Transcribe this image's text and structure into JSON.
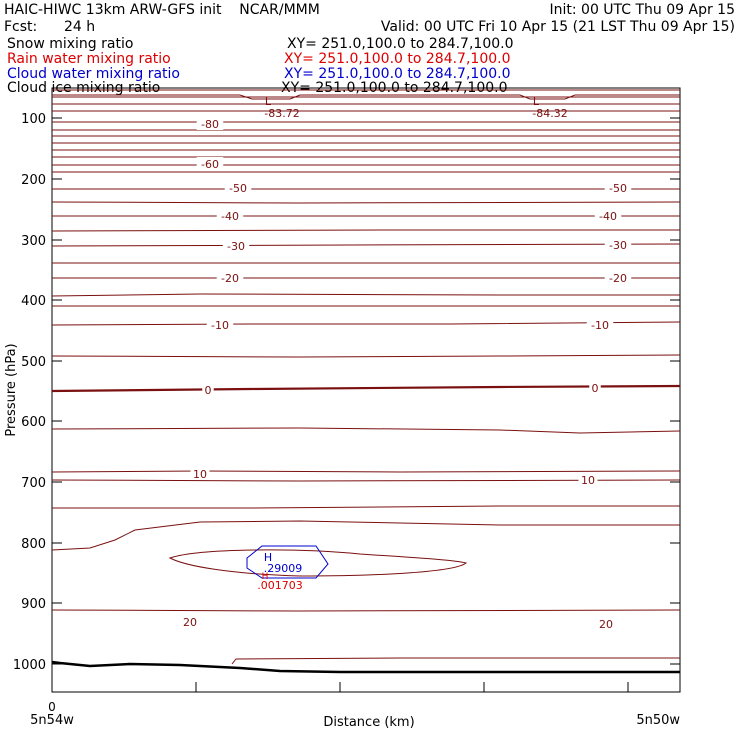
{
  "header": {
    "title": "HAIC-HIWC 13km ARW-GFS init    NCAR/MMM",
    "init": "Init: 00 UTC Thu 09 Apr 15",
    "fcst_label": "Fcst:",
    "fcst_value": "24 h",
    "valid": "Valid: 00 UTC Fri 10 Apr 15 (21 LST Thu 09 Apr 15)"
  },
  "legend": [
    {
      "name": "Snow mixing ratio",
      "xy": "XY= 251.0,100.0 to 284.7,100.0",
      "color": "#000000"
    },
    {
      "name": "Rain water mixing ratio",
      "xy": "XY= 251.0,100.0 to 284.7,100.0",
      "color": "#dd0000"
    },
    {
      "name": "Cloud water mixing ratio",
      "xy": "XY= 251.0,100.0 to 284.7,100.0",
      "color": "#0000cc"
    },
    {
      "name": "Cloud ice mixing ratio",
      "xy": "XY= 251.0,100.0 to 284.7,100.0",
      "color": "#000000"
    }
  ],
  "chart_data": {
    "type": "line",
    "xlabel": "Distance (km)",
    "ylabel": "Pressure (hPa)",
    "x_start_label": "5n54w",
    "x_end_label": "5n50w",
    "x_tick_zero": "0",
    "y_ticks": [
      "100",
      "200",
      "300",
      "400",
      "500",
      "600",
      "700",
      "800",
      "900",
      "1000"
    ],
    "temperature_contour_labels": [
      "-80",
      "-60",
      "-50",
      "-40",
      "-30",
      "-20",
      "-10",
      "0",
      "10",
      "20",
      "-50",
      "-40",
      "-30",
      "-20",
      "-10",
      "0",
      "10",
      "20"
    ],
    "lows": [
      {
        "symbol": "L",
        "value": "-83.72"
      },
      {
        "symbol": "L",
        "value": "-84.32"
      }
    ],
    "high": {
      "symbol": "H",
      "cloud_water_value": ".29009",
      "rain_water_value": ".001703"
    },
    "colors": {
      "temperature": "#7a1010",
      "cloud_water": "#0000cc",
      "rain_water": "#dd0000",
      "terrain": "#000000"
    }
  }
}
